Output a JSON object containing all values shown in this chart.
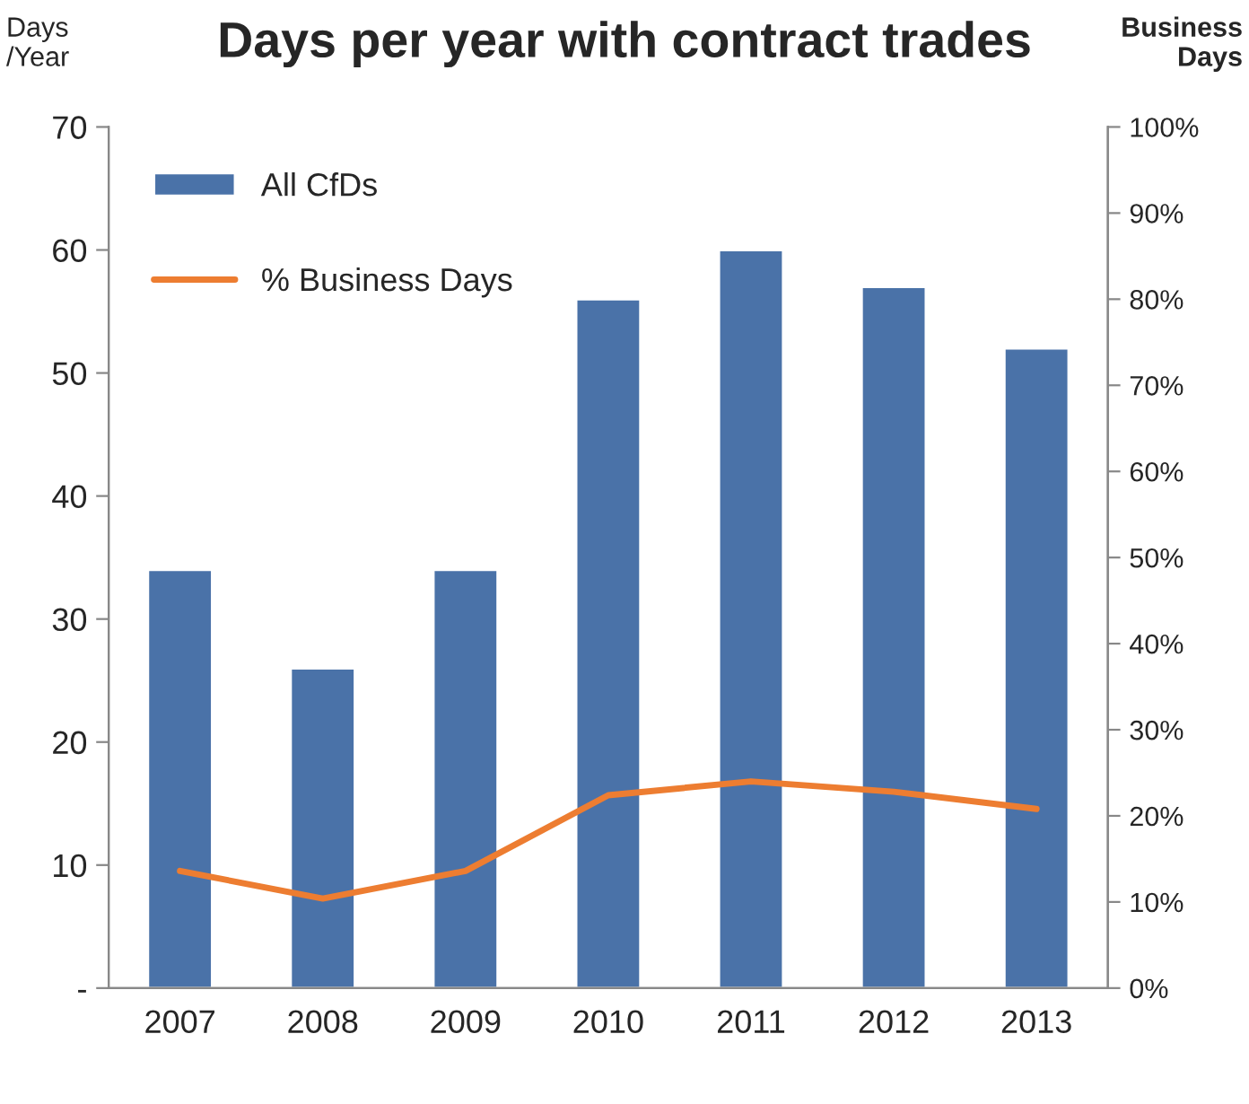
{
  "chart_data": {
    "type": "bar",
    "title": "Days per year with contract trades",
    "ylabel": "Days\n/Year",
    "y2label": "Business\nDays",
    "categories": [
      "2007",
      "2008",
      "2009",
      "2010",
      "2011",
      "2012",
      "2013"
    ],
    "series": [
      {
        "name": "All CfDs",
        "color": "#4a72a8",
        "values": [
          34,
          26,
          34,
          56,
          60,
          57,
          52
        ]
      },
      {
        "name": "% Business Days",
        "type": "line",
        "axis": "y2",
        "color": "#ed7d31",
        "values": [
          13.6,
          10.4,
          13.6,
          22.4,
          24,
          22.8,
          20.8
        ]
      }
    ],
    "ylim": [
      0,
      70
    ],
    "yticks": [
      {
        "value": 0,
        "label": "-"
      },
      10,
      20,
      30,
      40,
      50,
      60,
      70
    ],
    "y2lim": [
      0,
      100
    ],
    "y2ticks": [
      {
        "value": 0,
        "label": "0%"
      },
      {
        "value": 10,
        "label": "10%"
      },
      {
        "value": 20,
        "label": "20%"
      },
      {
        "value": 30,
        "label": "30%"
      },
      {
        "value": 40,
        "label": "40%"
      },
      {
        "value": 50,
        "label": "50%"
      },
      {
        "value": 60,
        "label": "60%"
      },
      {
        "value": 70,
        "label": "70%"
      },
      {
        "value": 80,
        "label": "80%"
      },
      {
        "value": 90,
        "label": "90%"
      },
      {
        "value": 100,
        "label": "100%"
      }
    ],
    "grid": false,
    "legend": "top left",
    "marker": "none",
    "line_style": "solid"
  }
}
